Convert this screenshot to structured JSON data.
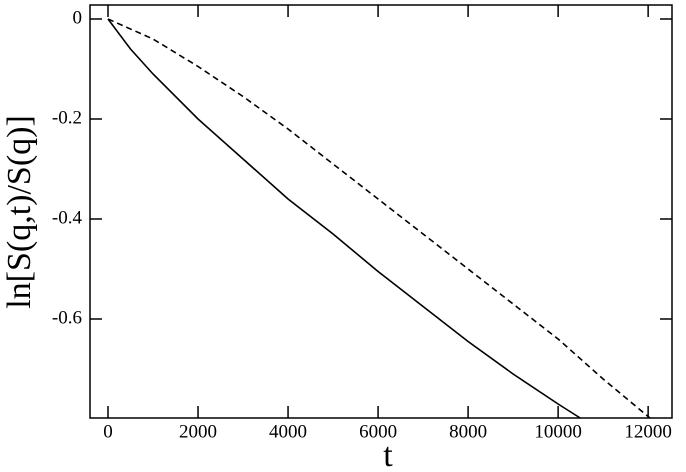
{
  "chart_data": {
    "type": "line",
    "x_label": "t",
    "y_label": "ln[S(q,t)/S(q)]",
    "xlim": [
      -400,
      12530
    ],
    "ylim": [
      -0.798,
      0.028
    ],
    "xticks": [
      0,
      2000,
      4000,
      6000,
      8000,
      10000,
      12000
    ],
    "yticks": [
      0,
      -0.2,
      -0.4,
      -0.6
    ],
    "series": [
      {
        "color": "#000000",
        "line_style": "solid",
        "x": [
          0,
          500,
          1000,
          2000,
          3000,
          4000,
          5000,
          6000,
          7000,
          8000,
          9000,
          10000,
          10490
        ],
        "values": [
          0,
          -0.06,
          -0.11,
          -0.2,
          -0.28,
          -0.36,
          -0.43,
          -0.505,
          -0.575,
          -0.645,
          -0.71,
          -0.77,
          -0.798
        ]
      },
      {
        "color": "#000000",
        "line_style": "dashed",
        "x": [
          0,
          1000,
          2000,
          3000,
          4000,
          5000,
          6000,
          7000,
          8000,
          9000,
          10000,
          11000,
          12040
        ],
        "values": [
          0,
          -0.04,
          -0.095,
          -0.155,
          -0.22,
          -0.29,
          -0.36,
          -0.43,
          -0.5,
          -0.57,
          -0.64,
          -0.72,
          -0.798
        ]
      }
    ]
  }
}
